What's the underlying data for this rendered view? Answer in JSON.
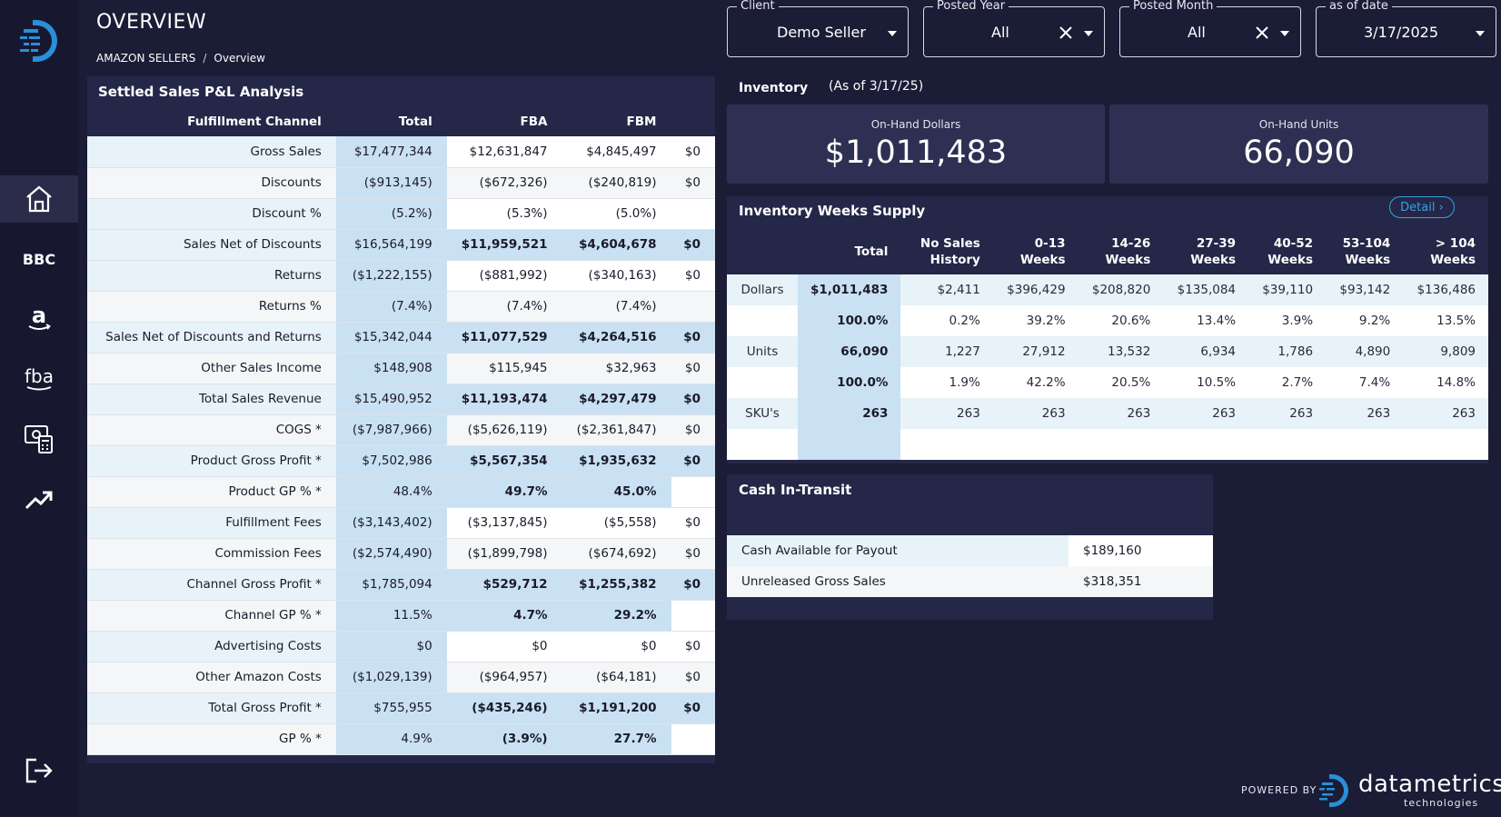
{
  "header": {
    "title": "OVERVIEW",
    "breadcrumb": [
      "AMAZON SELLERS",
      "/",
      "Overview"
    ]
  },
  "sidebar": {
    "items": [
      {
        "name": "home-icon",
        "active": true
      },
      {
        "label": "BBC"
      },
      {
        "name": "amazon-icon"
      },
      {
        "label": "fba"
      },
      {
        "name": "calculator-icon"
      },
      {
        "name": "trend-up-icon"
      },
      {
        "name": "logout-icon"
      }
    ]
  },
  "filters": {
    "client": {
      "label": "Client",
      "value": "Demo Seller"
    },
    "posted_year": {
      "label": "Posted Year",
      "value": "All"
    },
    "posted_month": {
      "label": "Posted Month",
      "value": "All"
    },
    "as_of_date": {
      "label": "as of date",
      "value": "3/17/2025"
    }
  },
  "pl": {
    "title": "Settled Sales P&L Analysis",
    "columns": [
      "Fulfillment Channel",
      "Total",
      "FBA",
      "FBM",
      ""
    ],
    "rows": [
      {
        "label": "Gross Sales",
        "total": "$17,477,344",
        "fba": "$12,631,847",
        "fbm": "$4,845,497",
        "other": "$0"
      },
      {
        "label": "Discounts",
        "total": "($913,145)",
        "fba": "($672,326)",
        "fbm": "($240,819)",
        "other": "$0"
      },
      {
        "label": "Discount %",
        "total": "(5.2%)",
        "fba": "(5.3%)",
        "fbm": "(5.0%)",
        "other": ""
      },
      {
        "label": "Sales Net of Discounts",
        "total": "$16,564,199",
        "fba": "$11,959,521",
        "fbm": "$4,604,678",
        "other": "$0"
      },
      {
        "label": "Returns",
        "total": "($1,222,155)",
        "fba": "($881,992)",
        "fbm": "($340,163)",
        "other": "$0"
      },
      {
        "label": "Returns %",
        "total": "(7.4%)",
        "fba": "(7.4%)",
        "fbm": "(7.4%)",
        "other": ""
      },
      {
        "label": "Sales Net of Discounts and Returns",
        "total": "$15,342,044",
        "fba": "$11,077,529",
        "fbm": "$4,264,516",
        "other": "$0"
      },
      {
        "label": "Other Sales Income",
        "total": "$148,908",
        "fba": "$115,945",
        "fbm": "$32,963",
        "other": "$0"
      },
      {
        "label": "Total Sales Revenue",
        "total": "$15,490,952",
        "fba": "$11,193,474",
        "fbm": "$4,297,479",
        "other": "$0"
      },
      {
        "label": "COGS *",
        "total": "($7,987,966)",
        "fba": "($5,626,119)",
        "fbm": "($2,361,847)",
        "other": "$0"
      },
      {
        "label": "Product Gross Profit *",
        "total": "$7,502,986",
        "fba": "$5,567,354",
        "fbm": "$1,935,632",
        "other": "$0"
      },
      {
        "label": "Product GP % *",
        "total": "48.4%",
        "fba": "49.7%",
        "fbm": "45.0%",
        "other": ""
      },
      {
        "label": "Fulfillment Fees",
        "total": "($3,143,402)",
        "fba": "($3,137,845)",
        "fbm": "($5,558)",
        "other": "$0"
      },
      {
        "label": "Commission Fees",
        "total": "($2,574,490)",
        "fba": "($1,899,798)",
        "fbm": "($674,692)",
        "other": "$0"
      },
      {
        "label": "Channel Gross Profit *",
        "total": "$1,785,094",
        "fba": "$529,712",
        "fbm": "$1,255,382",
        "other": "$0"
      },
      {
        "label": "Channel GP % *",
        "total": "11.5%",
        "fba": "4.7%",
        "fbm": "29.2%",
        "other": ""
      },
      {
        "label": "Advertising Costs",
        "total": "$0",
        "fba": "$0",
        "fbm": "$0",
        "other": "$0"
      },
      {
        "label": "Other Amazon Costs",
        "total": "($1,029,139)",
        "fba": "($964,957)",
        "fbm": "($64,181)",
        "other": "$0"
      },
      {
        "label": "Total Gross Profit *",
        "total": "$755,955",
        "fba": "($435,246)",
        "fbm": "$1,191,200",
        "other": "$0"
      },
      {
        "label": "GP % *",
        "total": "4.9%",
        "fba": "(3.9%)",
        "fbm": "27.7%",
        "other": ""
      }
    ]
  },
  "inventory": {
    "label": "Inventory",
    "as_of": "(As of  3/17/25)",
    "on_hand_dollars_label": "On-Hand Dollars",
    "on_hand_dollars": "$1,011,483",
    "on_hand_units_label": "On-Hand Units",
    "on_hand_units": "66,090"
  },
  "weeks_supply": {
    "title": "Inventory Weeks Supply",
    "detail_label": "Detail ›",
    "columns": [
      "",
      "Total",
      "No Sales History",
      "0-13 Weeks",
      "14-26 Weeks",
      "27-39 Weeks",
      "40-52 Weeks",
      "53-104 Weeks",
      "> 104 Weeks"
    ],
    "rows": [
      {
        "label": "Dollars",
        "values": [
          "$1,011,483",
          "$2,411",
          "$396,429",
          "$208,820",
          "$135,084",
          "$39,110",
          "$93,142",
          "$136,486"
        ]
      },
      {
        "label": "",
        "values": [
          "100.0%",
          "0.2%",
          "39.2%",
          "20.6%",
          "13.4%",
          "3.9%",
          "9.2%",
          "13.5%"
        ]
      },
      {
        "label": "Units",
        "values": [
          "66,090",
          "1,227",
          "27,912",
          "13,532",
          "6,934",
          "1,786",
          "4,890",
          "9,809"
        ]
      },
      {
        "label": "",
        "values": [
          "100.0%",
          "1.9%",
          "42.2%",
          "20.5%",
          "10.5%",
          "2.7%",
          "7.4%",
          "14.8%"
        ]
      },
      {
        "label": "SKU's",
        "values": [
          "263",
          "263",
          "263",
          "263",
          "263",
          "263",
          "263",
          "263"
        ]
      }
    ]
  },
  "cash": {
    "title": "Cash In-Transit",
    "rows": [
      {
        "label": "Cash Available for Payout",
        "value": "$189,160"
      },
      {
        "label": "Unreleased Gross Sales",
        "value": "$318,351"
      }
    ]
  },
  "footer": {
    "powered_by": "POWERED BY",
    "brand": "datametrics",
    "brand_sub": "technologies"
  },
  "colors": {
    "background": "#1b1c36",
    "panel": "#242747",
    "highlight": "#c9e1f2",
    "accent": "#3aa0e0"
  }
}
